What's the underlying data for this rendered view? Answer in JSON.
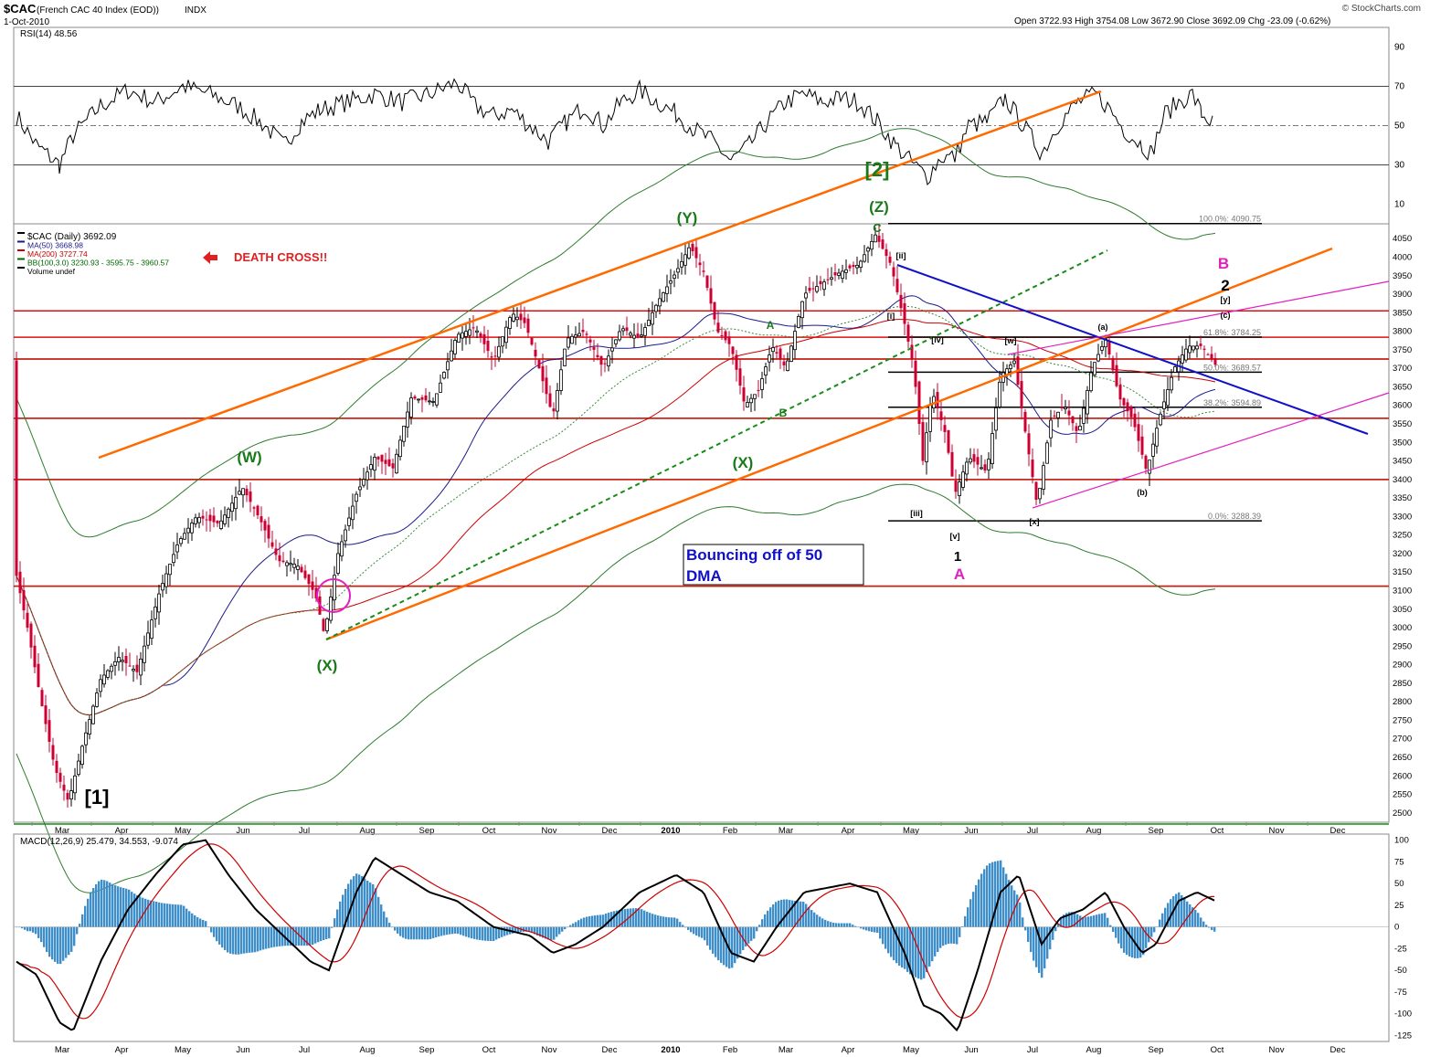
{
  "header": {
    "symbol": "$CAC",
    "name": "(French CAC 40 Index (EOD))",
    "exchange": "INDX",
    "date": "1-Oct-2010",
    "ohlc": "Open 3722.93  High 3754.08  Low 3672.90  Close 3692.09  Chg -23.09 (-0.62%)",
    "credit": "© StockCharts.com"
  },
  "rsi": {
    "label": "RSI(14) 48.56",
    "ticks": [
      90,
      70,
      50,
      30,
      10
    ],
    "overbought": 70,
    "oversold": 30,
    "center": 50
  },
  "price": {
    "legend": [
      {
        "text": "$CAC (Daily) 3692.09",
        "color": "#000000"
      },
      {
        "text": "MA(50) 3668.98",
        "color": "#1a1a8c"
      },
      {
        "text": "MA(200) 3727.74",
        "color": "#cc0000"
      },
      {
        "text": "BB(100,3.0) 3230.93 - 3595.75 - 3960.57",
        "color": "#006600"
      },
      {
        "text": "Volume undef",
        "color": "#000000"
      }
    ],
    "ticks": [
      4050,
      4000,
      3950,
      3900,
      3850,
      3800,
      3750,
      3700,
      3650,
      3600,
      3550,
      3500,
      3450,
      3400,
      3350,
      3300,
      3250,
      3200,
      3150,
      3100,
      3050,
      3000,
      2950,
      2900,
      2850,
      2800,
      2750,
      2700,
      2650,
      2600,
      2550,
      2500
    ],
    "ylim": [
      2475,
      4090
    ],
    "fib": [
      {
        "label": "100.0%: 4090.75",
        "value": 4090.75
      },
      {
        "label": "61.8%: 3784.25",
        "value": 3784.25
      },
      {
        "label": "50.0%: 3689.57",
        "value": 3689.57
      },
      {
        "label": "38.2%: 3594.89",
        "value": 3594.89
      },
      {
        "label": "0.0%: 3288.39",
        "value": 3288.39
      }
    ],
    "red_levels": [
      3855,
      3784,
      3725,
      3565,
      3400,
      3112
    ],
    "green_levels": [
      3855,
      3725,
      3565,
      3400,
      3112,
      2470
    ],
    "death_cross": "DEATH CROSS!!",
    "note_line1": "Bouncing off of 50",
    "note_line2": "DMA",
    "labels": [
      {
        "text": "[1]",
        "color": "#000000"
      },
      {
        "text": "(W)",
        "color": "#1a7a1a"
      },
      {
        "text": "(X)",
        "color": "#1a7a1a"
      },
      {
        "text": "(Y)",
        "color": "#1a7a1a"
      },
      {
        "text": "(X)",
        "color": "#1a7a1a"
      },
      {
        "text": "(Z)",
        "color": "#1a7a1a"
      },
      {
        "text": "[2]",
        "color": "#1a7a1a"
      },
      {
        "text": "C",
        "color": "#1a7a1a"
      },
      {
        "text": "A",
        "color": "#1a7a1a"
      },
      {
        "text": "B",
        "color": "#1a7a1a"
      },
      {
        "text": "[i]",
        "color": "#000000"
      },
      {
        "text": "[ii]",
        "color": "#000000"
      },
      {
        "text": "[iii]",
        "color": "#000000"
      },
      {
        "text": "[iv]",
        "color": "#000000"
      },
      {
        "text": "[v]",
        "color": "#000000"
      },
      {
        "text": "1",
        "color": "#000000"
      },
      {
        "text": "A",
        "color": "#e020c0"
      },
      {
        "text": "[w]",
        "color": "#000000"
      },
      {
        "text": "[x]",
        "color": "#000000"
      },
      {
        "text": "(a)",
        "color": "#000000"
      },
      {
        "text": "(b)",
        "color": "#000000"
      },
      {
        "text": "(c)",
        "color": "#000000"
      },
      {
        "text": "[y]",
        "color": "#000000"
      },
      {
        "text": "2",
        "color": "#000000"
      },
      {
        "text": "B",
        "color": "#e020c0"
      }
    ]
  },
  "x_axis": {
    "months": [
      "Mar",
      "Apr",
      "May",
      "Jun",
      "Jul",
      "Aug",
      "Sep",
      "Oct",
      "Nov",
      "Dec",
      "2010",
      "Feb",
      "Mar",
      "Apr",
      "May",
      "Jun",
      "Jul",
      "Aug",
      "Sep",
      "Oct",
      "Nov",
      "Dec"
    ]
  },
  "macd": {
    "label": "MACD(12,26,9) 25.479, 34.553, -9.074",
    "ticks": [
      100,
      75,
      50,
      25,
      0,
      -25,
      -50,
      -75,
      -100,
      -125
    ],
    "ylim": [
      -132,
      107
    ]
  },
  "chart_data": {
    "type": "line",
    "title": "$CAC (French CAC 40 Index (EOD))",
    "x": [
      "2009-03",
      "2009-04",
      "2009-05",
      "2009-06",
      "2009-07",
      "2009-08",
      "2009-09",
      "2009-10",
      "2009-11",
      "2009-12",
      "2010-01",
      "2010-02",
      "2010-03",
      "2010-04",
      "2010-05",
      "2010-06",
      "2010-07",
      "2010-08",
      "2010-09",
      "2010-10"
    ],
    "series": [
      {
        "name": "$CAC (Daily)",
        "values": [
          2520,
          2850,
          3280,
          3200,
          3040,
          3350,
          3650,
          3820,
          3620,
          3750,
          3920,
          3580,
          3800,
          4060,
          3450,
          3420,
          3350,
          3720,
          3450,
          3720
        ]
      }
    ],
    "ylim": [
      2475,
      4090
    ],
    "grid": false,
    "legend": "top-left"
  },
  "colors": {
    "candle_up": "#000000",
    "candle_down": "#cc0033",
    "ma50": "#1a1a8c",
    "ma200": "#cc0000",
    "bb": "#2e7d2e",
    "orange": "#ff6a00",
    "blue_trend": "#1010c8",
    "magenta": "#e020c0",
    "macd_hist": "#3d8ec9",
    "macd_signal": "#cc0000"
  }
}
